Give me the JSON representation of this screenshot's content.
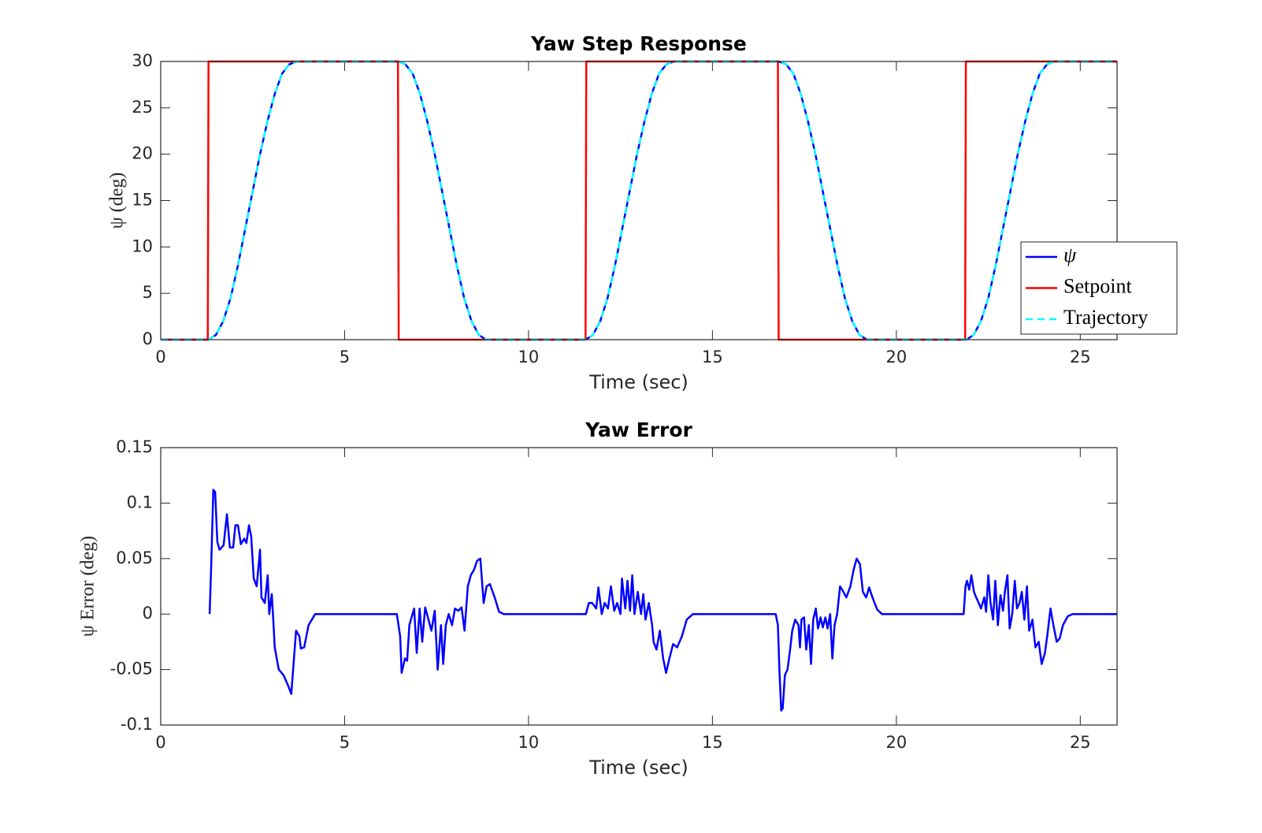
{
  "chart_data": [
    {
      "type": "line",
      "title": "Yaw Step Response",
      "xlabel": "Time (sec)",
      "ylabel": "ψ (deg)",
      "xlim": [
        0,
        26
      ],
      "ylim": [
        0,
        30
      ],
      "xticks": [
        0,
        5,
        10,
        15,
        20,
        25
      ],
      "yticks": [
        0,
        5,
        10,
        15,
        20,
        25,
        30
      ],
      "grid": false,
      "legend": "southeast",
      "series": [
        {
          "name": "ψ",
          "color": "#0000ff",
          "dashed": false,
          "x": [
            0,
            1.3,
            1.5,
            1.7,
            1.9,
            2.1,
            2.3,
            2.5,
            2.7,
            2.9,
            3.1,
            3.3,
            3.5,
            3.7,
            6.45,
            6.65,
            6.85,
            7.05,
            7.25,
            7.45,
            7.65,
            7.85,
            8.05,
            8.25,
            8.45,
            8.65,
            8.85,
            11.55,
            11.75,
            11.95,
            12.15,
            12.35,
            12.55,
            12.75,
            12.95,
            13.15,
            13.35,
            13.55,
            13.75,
            13.95,
            16.8,
            17.0,
            17.2,
            17.4,
            17.6,
            17.8,
            18.0,
            18.2,
            18.4,
            18.6,
            18.8,
            19.0,
            19.2,
            21.9,
            22.1,
            22.3,
            22.5,
            22.7,
            22.9,
            23.1,
            23.3,
            23.5,
            23.7,
            23.9,
            24.1,
            24.3,
            26
          ],
          "values": [
            0,
            0,
            0.5,
            2,
            4.5,
            8,
            12,
            16,
            20,
            23.5,
            26.5,
            28.7,
            29.7,
            30,
            30,
            29.7,
            28.7,
            26.5,
            23.5,
            20,
            16,
            12,
            8,
            4.5,
            2,
            0.5,
            0,
            0,
            0.5,
            2,
            4.5,
            8,
            12,
            16,
            20,
            23.5,
            26.5,
            28.7,
            29.7,
            30,
            30,
            29.7,
            28.7,
            26.5,
            23.5,
            20,
            16,
            12,
            8,
            4.5,
            2,
            0.5,
            0,
            0,
            0.5,
            2,
            4.5,
            8,
            12,
            16,
            20,
            23.5,
            26.5,
            28.7,
            29.7,
            30,
            30
          ]
        },
        {
          "name": "Setpoint",
          "color": "#ff0000",
          "dashed": false,
          "x": [
            0,
            1.28,
            1.3,
            6.45,
            6.47,
            11.55,
            11.57,
            16.78,
            16.8,
            21.87,
            21.89,
            26
          ],
          "values": [
            0,
            0,
            30,
            30,
            0,
            0,
            30,
            30,
            0,
            0,
            30,
            30
          ]
        },
        {
          "name": "Trajectory",
          "color": "#00ffff",
          "dashed": true,
          "x": [
            0,
            1.3,
            1.5,
            1.7,
            1.9,
            2.1,
            2.3,
            2.5,
            2.7,
            2.9,
            3.1,
            3.3,
            3.5,
            3.7,
            6.45,
            6.65,
            6.85,
            7.05,
            7.25,
            7.45,
            7.65,
            7.85,
            8.05,
            8.25,
            8.45,
            8.65,
            8.85,
            11.55,
            11.75,
            11.95,
            12.15,
            12.35,
            12.55,
            12.75,
            12.95,
            13.15,
            13.35,
            13.55,
            13.75,
            13.95,
            16.8,
            17.0,
            17.2,
            17.4,
            17.6,
            17.8,
            18.0,
            18.2,
            18.4,
            18.6,
            18.8,
            19.0,
            19.2,
            21.9,
            22.1,
            22.3,
            22.5,
            22.7,
            22.9,
            23.1,
            23.3,
            23.5,
            23.7,
            23.9,
            24.1,
            24.3,
            26
          ],
          "values": [
            0,
            0,
            0.5,
            2,
            4.5,
            8,
            12,
            16,
            20,
            23.5,
            26.5,
            28.7,
            29.7,
            30,
            30,
            29.7,
            28.7,
            26.5,
            23.5,
            20,
            16,
            12,
            8,
            4.5,
            2,
            0.5,
            0,
            0,
            0.5,
            2,
            4.5,
            8,
            12,
            16,
            20,
            23.5,
            26.5,
            28.7,
            29.7,
            30,
            30,
            29.7,
            28.7,
            26.5,
            23.5,
            20,
            16,
            12,
            8,
            4.5,
            2,
            0.5,
            0,
            0,
            0.5,
            2,
            4.5,
            8,
            12,
            16,
            20,
            23.5,
            26.5,
            28.7,
            29.7,
            30,
            30
          ]
        }
      ]
    },
    {
      "type": "line",
      "title": "Yaw Error",
      "xlabel": "Time (sec)",
      "ylabel": "ψ Error (deg)",
      "xlim": [
        0,
        26
      ],
      "ylim": [
        -0.1,
        0.15
      ],
      "xticks": [
        0,
        5,
        10,
        15,
        20,
        25
      ],
      "yticks": [
        -0.1,
        -0.05,
        0,
        0.05,
        0.1,
        0.15
      ],
      "grid": false,
      "series": [
        {
          "color": "#0000ff",
          "dashed": false,
          "x": [
            1.33,
            1.37,
            1.43,
            1.48,
            1.54,
            1.6,
            1.71,
            1.8,
            1.88,
            1.97,
            2.03,
            2.1,
            2.18,
            2.27,
            2.33,
            2.4,
            2.46,
            2.53,
            2.61,
            2.7,
            2.74,
            2.83,
            2.91,
            2.95,
            3.02,
            3.06,
            3.1,
            3.21,
            3.34,
            3.47,
            3.55,
            3.68,
            3.77,
            3.81,
            3.9,
            4.02,
            4.2,
            4.62,
            6.42,
            6.51,
            6.55,
            6.64,
            6.7,
            6.76,
            6.89,
            6.96,
            7.04,
            7.11,
            7.19,
            7.28,
            7.36,
            7.45,
            7.53,
            7.62,
            7.68,
            7.75,
            7.83,
            7.92,
            8.0,
            8.09,
            8.18,
            8.26,
            8.35,
            8.43,
            8.52,
            8.6,
            8.69,
            8.78,
            8.86,
            8.95,
            9.08,
            9.2,
            9.33,
            11.56,
            11.64,
            11.73,
            11.84,
            11.9,
            11.99,
            12.07,
            12.16,
            12.24,
            12.33,
            12.41,
            12.5,
            12.54,
            12.63,
            12.69,
            12.76,
            12.82,
            12.88,
            12.97,
            13.06,
            13.12,
            13.18,
            13.27,
            13.36,
            13.4,
            13.48,
            13.57,
            13.66,
            13.74,
            13.83,
            13.93,
            14.04,
            14.17,
            14.3,
            14.47,
            16.72,
            16.78,
            16.82,
            16.87,
            16.91,
            16.97,
            17.04,
            17.1,
            17.17,
            17.25,
            17.34,
            17.38,
            17.42,
            17.49,
            17.55,
            17.62,
            17.68,
            17.74,
            17.81,
            17.87,
            17.94,
            18.0,
            18.07,
            18.13,
            18.2,
            18.26,
            18.32,
            18.39,
            18.47,
            18.56,
            18.64,
            18.75,
            18.84,
            18.92,
            19.01,
            19.09,
            19.18,
            19.26,
            19.35,
            19.48,
            19.61,
            21.83,
            21.88,
            21.92,
            21.98,
            22.04,
            22.11,
            22.17,
            22.24,
            22.3,
            22.39,
            22.44,
            22.5,
            22.56,
            22.63,
            22.69,
            22.76,
            22.83,
            22.9,
            22.95,
            23.02,
            23.08,
            23.15,
            23.22,
            23.28,
            23.35,
            23.41,
            23.48,
            23.55,
            23.61,
            23.7,
            23.78,
            23.87,
            23.95,
            24.04,
            24.12,
            24.19,
            24.27,
            24.36,
            24.44,
            24.53,
            24.66,
            24.79,
            26
          ],
          "values": [
            0,
            0.04,
            0.112,
            0.11,
            0.065,
            0.058,
            0.062,
            0.09,
            0.06,
            0.06,
            0.08,
            0.08,
            0.063,
            0.068,
            0.064,
            0.08,
            0.07,
            0.032,
            0.025,
            0.058,
            0.015,
            0.01,
            0.035,
            0,
            0.018,
            -0.005,
            -0.03,
            -0.05,
            -0.055,
            -0.065,
            -0.072,
            -0.015,
            -0.02,
            -0.031,
            -0.03,
            -0.01,
            0,
            0,
            0,
            -0.02,
            -0.053,
            -0.04,
            -0.042,
            -0.01,
            0.005,
            -0.035,
            0.005,
            -0.025,
            0.006,
            -0.005,
            -0.015,
            0.003,
            -0.05,
            -0.01,
            -0.045,
            -0.01,
            0,
            -0.01,
            0.005,
            0.003,
            0.006,
            -0.015,
            0.025,
            0.035,
            0.04,
            0.048,
            0.05,
            0.01,
            0.025,
            0.027,
            0.015,
            0.002,
            0,
            0,
            0.01,
            0.01,
            0.005,
            0.024,
            0,
            0.01,
            0.005,
            0.025,
            0.003,
            0.01,
            0,
            0.032,
            0.005,
            0.03,
            0.003,
            0.035,
            0,
            0.02,
            0,
            0.018,
            -0.005,
            0.01,
            -0.01,
            -0.025,
            -0.032,
            -0.015,
            -0.04,
            -0.053,
            -0.04,
            -0.027,
            -0.03,
            -0.02,
            -0.005,
            0,
            0,
            -0.01,
            -0.05,
            -0.087,
            -0.085,
            -0.055,
            -0.05,
            -0.035,
            -0.015,
            -0.005,
            -0.01,
            -0.03,
            -0.005,
            -0.003,
            -0.032,
            -0.01,
            -0.045,
            -0.005,
            0.005,
            -0.013,
            -0.003,
            -0.012,
            -0.003,
            -0.013,
            0,
            -0.04,
            -0.01,
            0,
            0.025,
            0.02,
            0.015,
            0.025,
            0.04,
            0.05,
            0.045,
            0.02,
            0.015,
            0.024,
            0.015,
            0.004,
            0,
            0,
            0.025,
            0.03,
            0.022,
            0.035,
            0.02,
            0.015,
            0.01,
            0.005,
            0.015,
            0.002,
            0.035,
            0.01,
            -0.005,
            0.03,
            -0.01,
            0.017,
            0.003,
            0.02,
            0.035,
            -0.013,
            0,
            0.03,
            0.005,
            0.01,
            0.02,
            -0.005,
            0.025,
            -0.015,
            -0.005,
            -0.03,
            -0.025,
            -0.045,
            -0.035,
            -0.015,
            0.005,
            -0.01,
            -0.025,
            -0.022,
            -0.01,
            -0.002,
            0,
            0
          ]
        }
      ]
    }
  ]
}
